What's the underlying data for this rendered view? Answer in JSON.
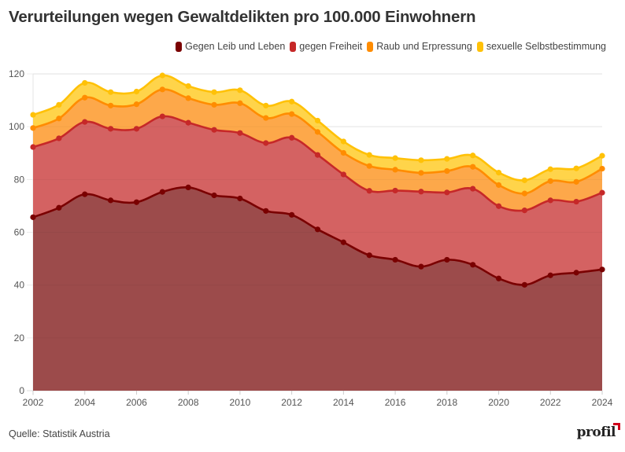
{
  "header": {
    "title": "Verurteilungen wegen Gewaltdelikten pro 100.000 Einwohnern"
  },
  "footer": {
    "source": "Quelle: Statistik Austria",
    "logo": "profil"
  },
  "chart_data": {
    "type": "area",
    "stacked": true,
    "title": "Verurteilungen wegen Gewaltdelikten pro 100.000 Einwohnern",
    "xlabel": "",
    "ylabel": "",
    "x": [
      2002,
      2003,
      2004,
      2005,
      2006,
      2007,
      2008,
      2009,
      2010,
      2011,
      2012,
      2013,
      2014,
      2015,
      2016,
      2017,
      2018,
      2019,
      2020,
      2021,
      2022,
      2023,
      2024
    ],
    "xticks": [
      "2002",
      "2004",
      "2006",
      "2008",
      "2010",
      "2012",
      "2014",
      "2016",
      "2018",
      "2020",
      "2022",
      "2024"
    ],
    "yticks": [
      "0",
      "20",
      "40",
      "60",
      "80",
      "100",
      "120"
    ],
    "xlim": [
      2002,
      2024
    ],
    "ylim": [
      0,
      120
    ],
    "grid": true,
    "legend_position": "top-right",
    "series": [
      {
        "name": "Gegen Leib und Leben",
        "line_color": "#7a0000",
        "fill_color": "#9c4b4b",
        "cumulative": [
          65.7,
          69.3,
          74.4,
          72.1,
          71.4,
          75.3,
          77.0,
          74.0,
          72.8,
          68.1,
          66.6,
          61.1,
          56.2,
          51.3,
          49.6,
          47.0,
          49.6,
          47.7,
          42.5,
          40.1,
          43.7,
          44.7,
          45.9
        ],
        "values": [
          65.7,
          69.3,
          74.4,
          72.1,
          71.4,
          75.3,
          77.0,
          74.0,
          72.8,
          68.1,
          66.6,
          61.1,
          56.2,
          51.3,
          49.6,
          47.0,
          49.6,
          47.7,
          42.5,
          40.1,
          43.7,
          44.7,
          45.9
        ]
      },
      {
        "name": "gegen Freiheit",
        "line_color": "#c62828",
        "fill_color": "#d46262",
        "cumulative": [
          92.3,
          95.6,
          101.8,
          99.2,
          99.2,
          103.9,
          101.5,
          98.8,
          97.6,
          93.8,
          95.8,
          89.3,
          81.9,
          75.7,
          75.8,
          75.4,
          75.1,
          76.5,
          69.9,
          68.3,
          72.1,
          71.6,
          75.0
        ],
        "values": [
          26.6,
          26.3,
          27.4,
          27.1,
          27.8,
          28.6,
          24.5,
          24.8,
          24.8,
          25.7,
          29.2,
          28.2,
          25.7,
          24.4,
          26.2,
          28.4,
          25.5,
          28.8,
          27.4,
          28.2,
          28.4,
          26.9,
          29.1
        ]
      },
      {
        "name": "Raub und Erpressung",
        "line_color": "#ff8c00",
        "fill_color": "#fda84a",
        "cumulative": [
          99.5,
          103.1,
          111.0,
          108.0,
          108.5,
          114.1,
          110.8,
          108.3,
          108.9,
          103.3,
          104.8,
          98.0,
          90.1,
          85.1,
          83.7,
          82.5,
          83.2,
          84.8,
          77.9,
          74.7,
          79.4,
          79.1,
          84.1
        ],
        "values": [
          7.2,
          7.5,
          9.2,
          8.8,
          9.3,
          10.2,
          9.3,
          9.5,
          11.3,
          9.5,
          9.0,
          8.7,
          8.2,
          9.4,
          7.9,
          7.1,
          8.1,
          8.3,
          8.0,
          6.4,
          7.3,
          7.5,
          9.1
        ]
      },
      {
        "name": "sexuelle Selbstbestimmung",
        "line_color": "#ffc107",
        "fill_color": "#ffd44a",
        "cumulative": [
          104.5,
          108.3,
          116.6,
          113.1,
          113.3,
          119.4,
          115.4,
          113.1,
          113.8,
          108.0,
          109.5,
          102.3,
          94.4,
          89.3,
          88.1,
          87.3,
          87.8,
          89.1,
          82.6,
          79.7,
          83.9,
          84.2,
          89.0
        ],
        "values": [
          5.0,
          5.2,
          5.6,
          5.1,
          4.8,
          5.3,
          4.6,
          4.8,
          4.9,
          4.7,
          4.7,
          4.3,
          4.3,
          4.2,
          4.4,
          4.8,
          4.6,
          4.3,
          4.7,
          5.0,
          4.5,
          5.1,
          4.9
        ]
      }
    ]
  }
}
